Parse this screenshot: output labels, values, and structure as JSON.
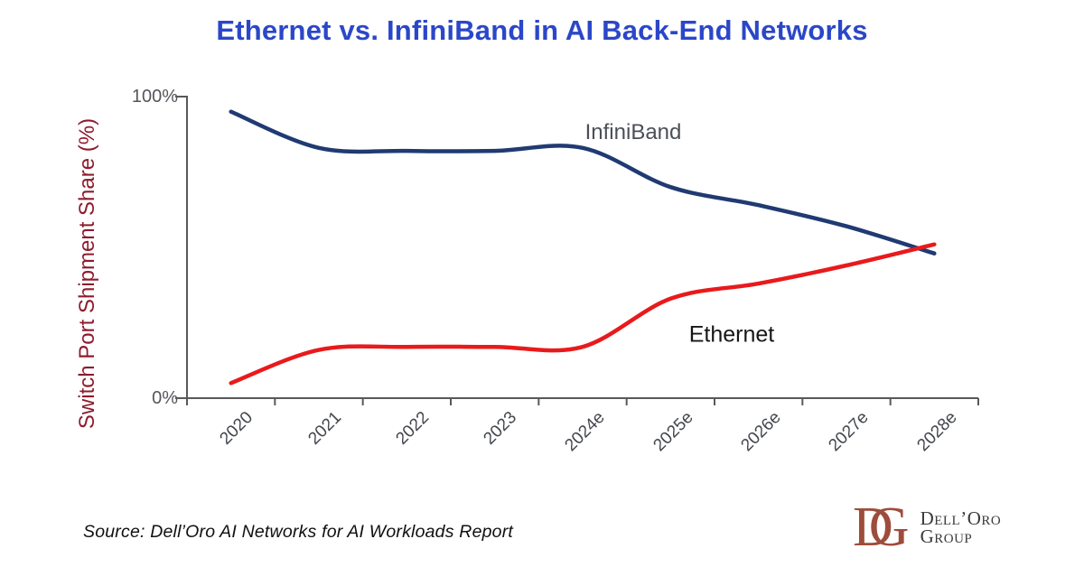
{
  "title": {
    "text": "Ethernet vs. InfiniBand in AI Back-End Networks",
    "color": "#2B47C8"
  },
  "chart_data": {
    "type": "line",
    "title": "Ethernet vs. InfiniBand in AI Back-End Networks",
    "categories": [
      "2020",
      "2021",
      "2022",
      "2023",
      "2024e",
      "2025e",
      "2026e",
      "2027e",
      "2028e"
    ],
    "series": [
      {
        "name": "InfiniBand",
        "color": "#203A72",
        "values": [
          95,
          83,
          82,
          82,
          83,
          70,
          64,
          57,
          48
        ]
      },
      {
        "name": "Ethernet",
        "color": "#E81A1C",
        "values": [
          5,
          16,
          17,
          17,
          17,
          33,
          38,
          44,
          51
        ]
      }
    ],
    "xlabel": "",
    "ylabel": "Switch Port Shipment Share (%)",
    "ylabel_color": "#8E1B2D",
    "ylim": [
      0,
      100
    ],
    "ytick_labels": [
      "100%",
      "0%"
    ],
    "grid": false,
    "line_style": "smooth",
    "legend": "inline-labels",
    "axis_color": "#595959",
    "tick_label_color": "#43464D"
  },
  "source": {
    "text": "Source: Dell’Oro AI Networks for AI Workloads Report"
  },
  "logo": {
    "monogram_d": "D",
    "monogram_g": "G",
    "monogram_color": "#9E4C3B",
    "name_line1": "Dell’Oro",
    "name_line2": "Group",
    "text_color": "#3A3A3A"
  }
}
